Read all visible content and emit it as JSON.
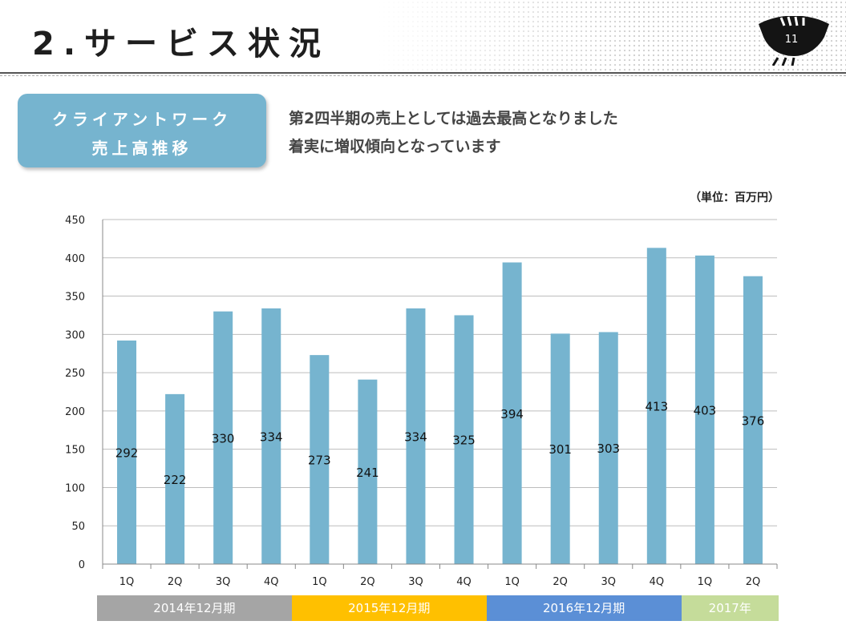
{
  "slide": {
    "title": "2.サービス状況",
    "page_number": "11"
  },
  "section": {
    "line1": "クライアントワーク",
    "line2": "売上高推移"
  },
  "headline": {
    "line1": "第2四半期の売上としては過去最高となりました",
    "line2": "着実に増収傾向となっています"
  },
  "colors": {
    "bar": "#76b4cf",
    "section_box": "#76b4cf"
  },
  "chart_data": {
    "type": "bar",
    "unit_label": "（単位：百万円）",
    "categories": [
      "1Q",
      "2Q",
      "3Q",
      "4Q",
      "1Q",
      "2Q",
      "3Q",
      "4Q",
      "1Q",
      "2Q",
      "3Q",
      "4Q",
      "1Q",
      "2Q"
    ],
    "values": [
      292,
      222,
      330,
      334,
      273,
      241,
      334,
      325,
      394,
      301,
      303,
      413,
      403,
      376
    ],
    "y_ticks": [
      0,
      50,
      100,
      150,
      200,
      250,
      300,
      350,
      400,
      450
    ],
    "ylim": [
      0,
      450
    ],
    "grid": true,
    "legend": "none",
    "periods": [
      {
        "label": "2014年12月期",
        "count": 4,
        "color": "#a5a5a5"
      },
      {
        "label": "2015年12月期",
        "count": 4,
        "color": "#ffc000"
      },
      {
        "label": "2016年12月期",
        "count": 4,
        "color": "#5b8fd6"
      },
      {
        "label": "2017年",
        "count": 2,
        "color": "#c5dc9a"
      }
    ]
  }
}
